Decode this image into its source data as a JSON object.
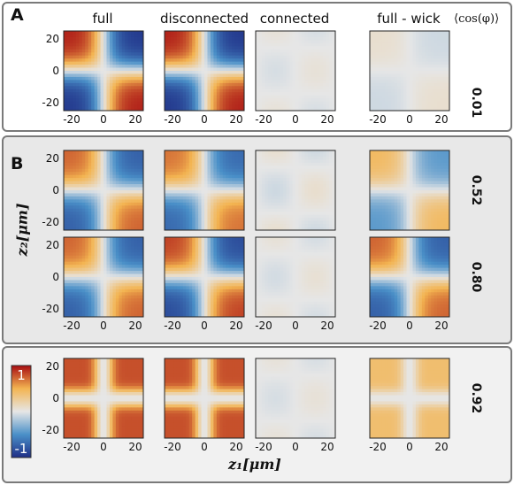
{
  "panels": {
    "a_label": "A",
    "b_label": "B"
  },
  "header": {
    "columns": [
      "full",
      "disconnected",
      "connected",
      "full - wick"
    ],
    "cos_label": "⟨cos(φ)⟩"
  },
  "axes": {
    "xlabel": "z₁[μm]",
    "ylabel": "z₂[μm]",
    "tick_values": [
      "-20",
      "0",
      "20"
    ]
  },
  "colorbar": {
    "max_label": "1",
    "min_label": "-1",
    "colors": [
      "#1f2e86",
      "#4a90c8",
      "#e6e6e6",
      "#f3b451",
      "#a80d12"
    ]
  },
  "chart_data": {
    "type": "heatmap",
    "x_range": [
      -25,
      25
    ],
    "y_range": [
      -25,
      25
    ],
    "color_range": [
      -1,
      1
    ],
    "rows": [
      {
        "cos_phi": "0.01",
        "amplitudes": {
          "full": 0.95,
          "disconnected": 0.95,
          "connected": 0.05,
          "full - wick": 0.08
        },
        "pattern": "anti"
      },
      {
        "cos_phi": "0.52",
        "amplitudes": {
          "full": 0.75,
          "disconnected": 0.7,
          "connected": 0.08,
          "full - wick": 0.45
        },
        "pattern": "anti"
      },
      {
        "cos_phi": "0.80",
        "amplitudes": {
          "full": 0.75,
          "disconnected": 0.85,
          "connected": 0.06,
          "full - wick": 0.75
        },
        "pattern": "anti"
      },
      {
        "cos_phi": "0.92",
        "amplitudes": {
          "full": 0.8,
          "disconnected": 0.8,
          "connected": 0.05,
          "full - wick": 0.4
        },
        "pattern": "sym"
      }
    ]
  }
}
